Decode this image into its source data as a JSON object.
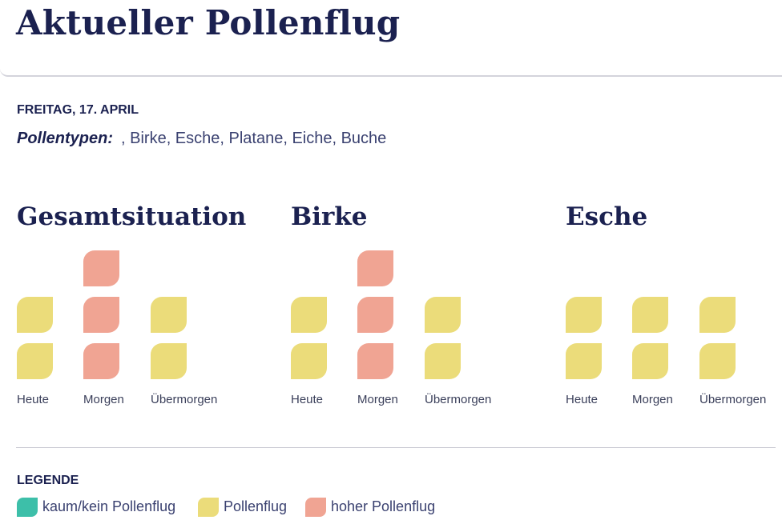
{
  "header": {
    "title": "Aktueller Pollenflug"
  },
  "date": "FREITAG, 17. APRIL",
  "pollen_types": {
    "label": "Pollentypen:",
    "value": ", Birke, Esche, Platane, Eiche, Buche"
  },
  "colors": {
    "none": "#3dbfa9",
    "pollen": "#ebdc7a",
    "high": "#f0a493",
    "text": "#1b2150"
  },
  "sections": [
    {
      "title": "Gesamtsituation",
      "days": [
        {
          "label": "Heute",
          "levels": [
            "pollen",
            "pollen"
          ]
        },
        {
          "label": "Morgen",
          "levels": [
            "high",
            "high",
            "high"
          ]
        },
        {
          "label": "Übermorgen",
          "levels": [
            "pollen",
            "pollen"
          ]
        }
      ]
    },
    {
      "title": "Birke",
      "days": [
        {
          "label": "Heute",
          "levels": [
            "pollen",
            "pollen"
          ]
        },
        {
          "label": "Morgen",
          "levels": [
            "high",
            "high",
            "high"
          ]
        },
        {
          "label": "Übermorgen",
          "levels": [
            "pollen",
            "pollen"
          ]
        }
      ]
    },
    {
      "title": "Esche",
      "days": [
        {
          "label": "Heute",
          "levels": [
            "pollen",
            "pollen"
          ]
        },
        {
          "label": "Morgen",
          "levels": [
            "pollen",
            "pollen"
          ]
        },
        {
          "label": "Übermorgen",
          "levels": [
            "pollen",
            "pollen"
          ]
        }
      ]
    }
  ],
  "legend": {
    "title": "LEGENDE",
    "items": [
      {
        "label": "kaum/kein Pollenflug",
        "level": "none",
        "icon": "swatch-none"
      },
      {
        "label": "Pollenflug",
        "level": "pollen",
        "icon": "swatch-pollen"
      },
      {
        "label": "hoher Pollenflug",
        "level": "high",
        "icon": "swatch-high"
      }
    ]
  }
}
